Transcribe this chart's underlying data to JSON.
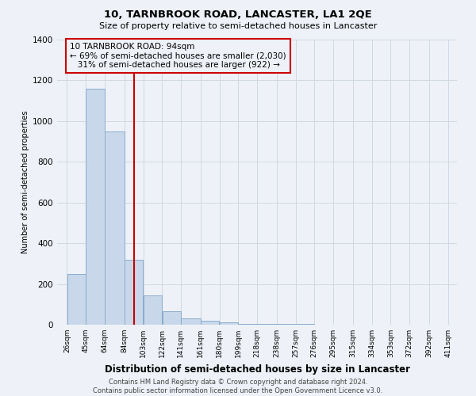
{
  "title": "10, TARNBROOK ROAD, LANCASTER, LA1 2QE",
  "subtitle": "Size of property relative to semi-detached houses in Lancaster",
  "xlabel": "Distribution of semi-detached houses by size in Lancaster",
  "ylabel": "Number of semi-detached properties",
  "footer": "Contains HM Land Registry data © Crown copyright and database right 2024.\nContains public sector information licensed under the Open Government Licence v3.0.",
  "property_label": "10 TARNBROOK ROAD: 94sqm",
  "smaller_pct": "69%",
  "smaller_n": "2,030",
  "larger_pct": "31%",
  "larger_n": "922",
  "property_size": 94,
  "bar_left_edges": [
    26,
    45,
    64,
    84,
    103,
    122,
    141,
    161,
    180,
    199,
    218,
    238,
    257,
    276,
    295,
    315,
    334,
    353,
    372,
    392
  ],
  "bar_widths": [
    19,
    19,
    20,
    19,
    19,
    19,
    20,
    19,
    19,
    19,
    20,
    19,
    19,
    19,
    20,
    19,
    19,
    19,
    20,
    19
  ],
  "bar_heights": [
    250,
    1160,
    950,
    320,
    145,
    65,
    30,
    20,
    10,
    5,
    3,
    2,
    2,
    1,
    1,
    1,
    0,
    0,
    0,
    0
  ],
  "bar_color": "#c8d8ea",
  "bar_edge_color": "#8aabcc",
  "red_line_color": "#cc0000",
  "annotation_box_edge": "#cc0000",
  "grid_color": "#d0d8e4",
  "background_color": "#eef2f8",
  "tick_labels": [
    "26sqm",
    "45sqm",
    "64sqm",
    "84sqm",
    "103sqm",
    "122sqm",
    "141sqm",
    "161sqm",
    "180sqm",
    "199sqm",
    "218sqm",
    "238sqm",
    "257sqm",
    "276sqm",
    "295sqm",
    "315sqm",
    "334sqm",
    "353sqm",
    "372sqm",
    "392sqm",
    "411sqm"
  ],
  "ylim": [
    0,
    1400
  ],
  "yticks": [
    0,
    200,
    400,
    600,
    800,
    1000,
    1200,
    1400
  ]
}
